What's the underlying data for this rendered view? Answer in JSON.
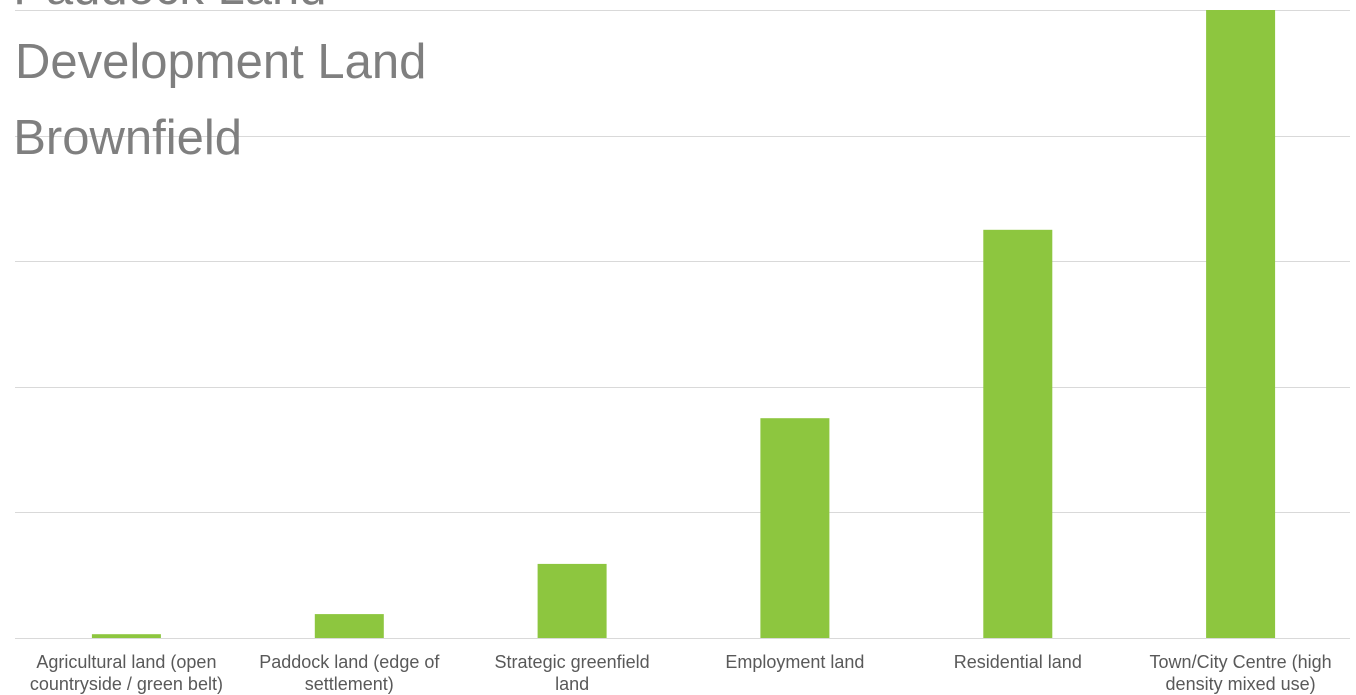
{
  "overlay_text": [
    "/ Paddock Land",
    "Development Land",
    "/ Brownfield"
  ],
  "chart_data": {
    "type": "bar",
    "title": "",
    "xlabel": "",
    "ylabel": "",
    "categories": [
      [
        "Agricultural land (open",
        "countryside / green belt)"
      ],
      [
        "Paddock land (edge of",
        "settlement)"
      ],
      [
        "Strategic greenfield",
        "land"
      ],
      [
        "Employment land"
      ],
      [
        "Residential land"
      ],
      [
        "Town/City Centre (high",
        "density mixed use)"
      ]
    ],
    "values": [
      0.6,
      3.8,
      11.8,
      35,
      65,
      100
    ],
    "ylim": [
      0,
      100
    ],
    "y_gridlines": [
      0,
      20,
      40,
      60,
      80,
      100
    ],
    "bar_color": "#8dc63f",
    "grid_color": "#d9d9d9",
    "label_color": "#595959",
    "grid": true,
    "legend": "none"
  }
}
